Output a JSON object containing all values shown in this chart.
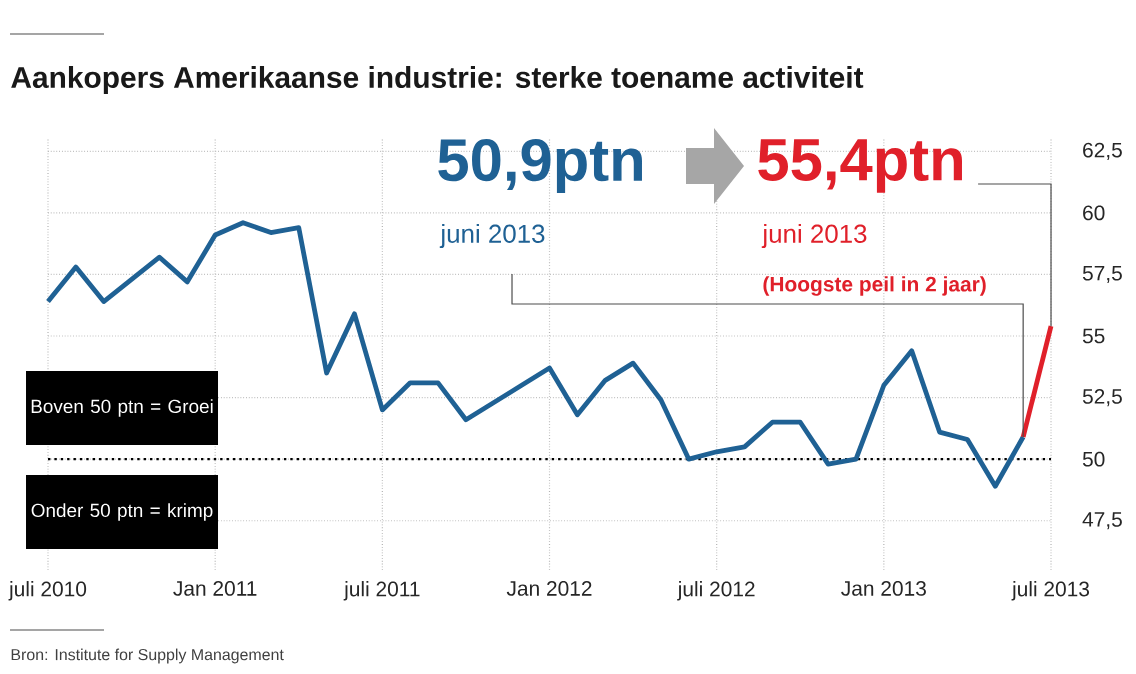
{
  "chart_data": {
    "type": "line",
    "title": "Aankopers Amerikaanse industrie: sterke toename activiteit",
    "x": [
      "2010-07",
      "2010-08",
      "2010-09",
      "2010-10",
      "2010-11",
      "2010-12",
      "2011-01",
      "2011-02",
      "2011-03",
      "2011-04",
      "2011-05",
      "2011-06",
      "2011-07",
      "2011-08",
      "2011-09",
      "2011-10",
      "2011-11",
      "2011-12",
      "2012-01",
      "2012-02",
      "2012-03",
      "2012-04",
      "2012-05",
      "2012-06",
      "2012-07",
      "2012-08",
      "2012-09",
      "2012-10",
      "2012-11",
      "2012-12",
      "2013-01",
      "2013-02",
      "2013-03",
      "2013-04",
      "2013-05",
      "2013-06",
      "2013-07"
    ],
    "series": [
      {
        "color": "#1f6194",
        "values": [
          56.4,
          57.8,
          56.4,
          57.3,
          58.2,
          57.2,
          59.1,
          59.6,
          59.2,
          59.4,
          53.5,
          55.9,
          52.0,
          53.1,
          53.1,
          51.6,
          52.3,
          53.0,
          53.7,
          51.8,
          53.2,
          53.9,
          52.4,
          50.0,
          50.3,
          50.5,
          51.5,
          51.5,
          49.8,
          50.0,
          53.0,
          54.4,
          51.1,
          50.8,
          48.9,
          50.9,
          null
        ]
      },
      {
        "color": "#e0202a",
        "values": [
          null,
          null,
          null,
          null,
          null,
          null,
          null,
          null,
          null,
          null,
          null,
          null,
          null,
          null,
          null,
          null,
          null,
          null,
          null,
          null,
          null,
          null,
          null,
          null,
          null,
          null,
          null,
          null,
          null,
          null,
          null,
          null,
          null,
          null,
          null,
          50.9,
          55.4
        ]
      }
    ],
    "xlim": [
      "2010-07",
      "2013-07"
    ],
    "xticks": [
      {
        "value": "2010-07",
        "label": "juli 2010"
      },
      {
        "value": "2011-01",
        "label": "Jan 2011"
      },
      {
        "value": "2011-07",
        "label": "juli 2011"
      },
      {
        "value": "2012-01",
        "label": "Jan 2012"
      },
      {
        "value": "2012-07",
        "label": "juli 2012"
      },
      {
        "value": "2013-01",
        "label": "Jan 2013"
      },
      {
        "value": "2013-07",
        "label": "juli 2013"
      }
    ],
    "ylim": [
      45.5,
      63
    ],
    "yticks": [
      {
        "value": 47.5,
        "label": "47,5"
      },
      50,
      {
        "value": 52.5,
        "label": "52,5"
      },
      55,
      {
        "value": 57.5,
        "label": "57,5"
      },
      60,
      {
        "value": 62.5,
        "label": "62,5"
      }
    ],
    "grid": true,
    "ref_lines": [
      {
        "axis": "y",
        "value": 50,
        "color": "#000000",
        "line_style": "dotted"
      }
    ],
    "annotations": [
      "50,9ptn",
      {
        "text": "juni 2013",
        "x": "2013-06",
        "y": 50.9
      },
      {
        "text": "55,4ptn",
        "x": "2013-07",
        "y": 55.4
      },
      "juni 2013",
      "(Hoogste peil in 2 jaar)",
      "Boven 50 ptn = Groei",
      "Onder 50 ptn = krimp",
      "Bron: Institute for Supply Management"
    ]
  }
}
